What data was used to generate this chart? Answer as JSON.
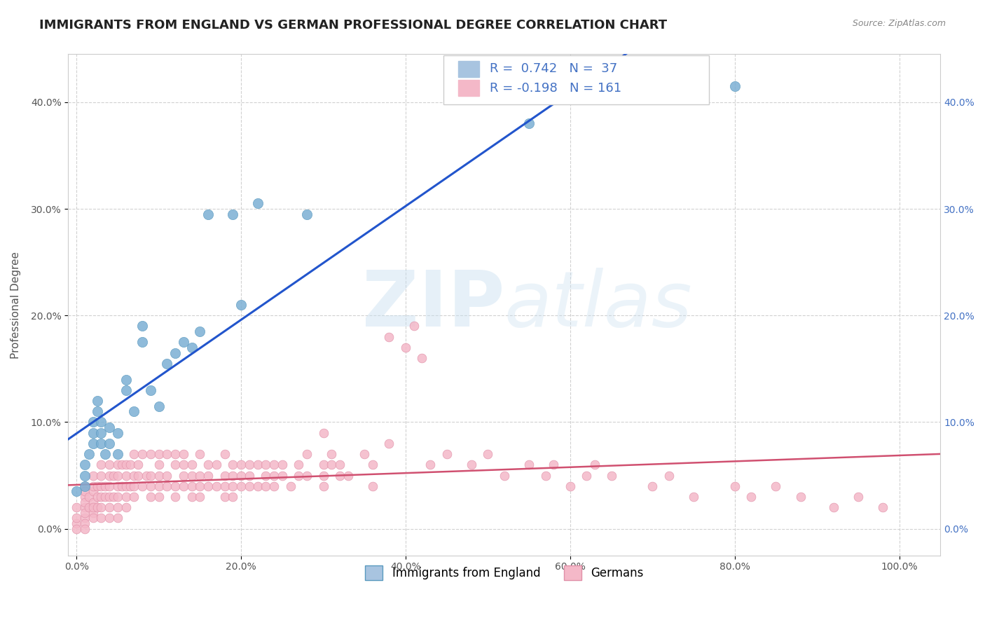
{
  "title": "IMMIGRANTS FROM ENGLAND VS GERMAN PROFESSIONAL DEGREE CORRELATION CHART",
  "source_text": "Source: ZipAtlas.com",
  "ylabel": "Professional Degree",
  "x_tick_labels": [
    "0.0%",
    "20.0%",
    "40.0%",
    "60.0%",
    "80.0%",
    "100.0%"
  ],
  "x_tick_vals": [
    0.0,
    0.2,
    0.4,
    0.6,
    0.8,
    1.0
  ],
  "y_tick_labels": [
    "0.0%",
    "10.0%",
    "20.0%",
    "30.0%",
    "40.0%"
  ],
  "y_tick_vals": [
    0.0,
    0.1,
    0.2,
    0.3,
    0.4
  ],
  "xlim": [
    -0.01,
    1.05
  ],
  "ylim": [
    -0.025,
    0.445
  ],
  "series_england": {
    "face_color": "#7bafd4",
    "edge_color": "#5a9abf",
    "line_color": "#2255cc",
    "x": [
      0.0,
      0.01,
      0.01,
      0.01,
      0.015,
      0.02,
      0.02,
      0.02,
      0.025,
      0.025,
      0.03,
      0.03,
      0.03,
      0.035,
      0.04,
      0.04,
      0.05,
      0.05,
      0.06,
      0.06,
      0.07,
      0.08,
      0.08,
      0.09,
      0.1,
      0.11,
      0.12,
      0.13,
      0.14,
      0.15,
      0.16,
      0.19,
      0.2,
      0.22,
      0.28,
      0.55,
      0.8
    ],
    "y": [
      0.035,
      0.04,
      0.05,
      0.06,
      0.07,
      0.08,
      0.09,
      0.1,
      0.11,
      0.12,
      0.08,
      0.09,
      0.1,
      0.07,
      0.08,
      0.095,
      0.07,
      0.09,
      0.13,
      0.14,
      0.11,
      0.175,
      0.19,
      0.13,
      0.115,
      0.155,
      0.165,
      0.175,
      0.17,
      0.185,
      0.295,
      0.295,
      0.21,
      0.305,
      0.295,
      0.38,
      0.415
    ]
  },
  "series_german": {
    "face_color": "#f4b8c8",
    "edge_color": "#e090a8",
    "line_color": "#d05070",
    "x": [
      0.0,
      0.0,
      0.0,
      0.0,
      0.01,
      0.01,
      0.01,
      0.01,
      0.01,
      0.01,
      0.01,
      0.01,
      0.01,
      0.015,
      0.015,
      0.02,
      0.02,
      0.02,
      0.02,
      0.02,
      0.02,
      0.02,
      0.025,
      0.025,
      0.025,
      0.03,
      0.03,
      0.03,
      0.03,
      0.03,
      0.03,
      0.035,
      0.035,
      0.04,
      0.04,
      0.04,
      0.04,
      0.04,
      0.04,
      0.045,
      0.045,
      0.05,
      0.05,
      0.05,
      0.05,
      0.05,
      0.05,
      0.055,
      0.055,
      0.06,
      0.06,
      0.06,
      0.06,
      0.06,
      0.065,
      0.065,
      0.07,
      0.07,
      0.07,
      0.07,
      0.075,
      0.075,
      0.08,
      0.08,
      0.085,
      0.09,
      0.09,
      0.09,
      0.09,
      0.1,
      0.1,
      0.1,
      0.1,
      0.1,
      0.11,
      0.11,
      0.11,
      0.12,
      0.12,
      0.12,
      0.12,
      0.13,
      0.13,
      0.13,
      0.13,
      0.14,
      0.14,
      0.14,
      0.14,
      0.15,
      0.15,
      0.15,
      0.15,
      0.16,
      0.16,
      0.16,
      0.17,
      0.17,
      0.18,
      0.18,
      0.18,
      0.18,
      0.19,
      0.19,
      0.19,
      0.19,
      0.2,
      0.2,
      0.2,
      0.21,
      0.21,
      0.21,
      0.22,
      0.22,
      0.23,
      0.23,
      0.23,
      0.24,
      0.24,
      0.24,
      0.25,
      0.25,
      0.26,
      0.27,
      0.27,
      0.28,
      0.28,
      0.3,
      0.3,
      0.3,
      0.3,
      0.31,
      0.31,
      0.32,
      0.32,
      0.33,
      0.35,
      0.36,
      0.36,
      0.38,
      0.38,
      0.4,
      0.41,
      0.42,
      0.43,
      0.45,
      0.48,
      0.5,
      0.52,
      0.55,
      0.57,
      0.58,
      0.6,
      0.62,
      0.63,
      0.65,
      0.7,
      0.72,
      0.75,
      0.8,
      0.82,
      0.85,
      0.88,
      0.92,
      0.95,
      0.98
    ],
    "y": [
      0.005,
      0.0,
      0.01,
      0.02,
      0.01,
      0.02,
      0.03,
      0.04,
      0.005,
      0.0,
      0.015,
      0.025,
      0.035,
      0.02,
      0.03,
      0.015,
      0.025,
      0.035,
      0.01,
      0.02,
      0.04,
      0.05,
      0.02,
      0.03,
      0.04,
      0.01,
      0.02,
      0.03,
      0.04,
      0.05,
      0.06,
      0.03,
      0.04,
      0.02,
      0.03,
      0.04,
      0.05,
      0.01,
      0.06,
      0.03,
      0.05,
      0.02,
      0.03,
      0.04,
      0.05,
      0.06,
      0.01,
      0.04,
      0.06,
      0.03,
      0.04,
      0.05,
      0.06,
      0.02,
      0.04,
      0.06,
      0.03,
      0.04,
      0.05,
      0.07,
      0.05,
      0.06,
      0.04,
      0.07,
      0.05,
      0.03,
      0.04,
      0.05,
      0.07,
      0.04,
      0.05,
      0.06,
      0.07,
      0.03,
      0.04,
      0.05,
      0.07,
      0.03,
      0.04,
      0.06,
      0.07,
      0.04,
      0.05,
      0.06,
      0.07,
      0.03,
      0.04,
      0.05,
      0.06,
      0.03,
      0.04,
      0.05,
      0.07,
      0.04,
      0.05,
      0.06,
      0.04,
      0.06,
      0.03,
      0.04,
      0.05,
      0.07,
      0.04,
      0.05,
      0.06,
      0.03,
      0.04,
      0.05,
      0.06,
      0.04,
      0.05,
      0.06,
      0.04,
      0.06,
      0.05,
      0.06,
      0.04,
      0.05,
      0.06,
      0.04,
      0.06,
      0.05,
      0.04,
      0.05,
      0.06,
      0.05,
      0.07,
      0.09,
      0.05,
      0.06,
      0.04,
      0.06,
      0.07,
      0.05,
      0.06,
      0.05,
      0.07,
      0.06,
      0.04,
      0.18,
      0.08,
      0.17,
      0.19,
      0.16,
      0.06,
      0.07,
      0.06,
      0.07,
      0.05,
      0.06,
      0.05,
      0.06,
      0.04,
      0.05,
      0.06,
      0.05,
      0.04,
      0.05,
      0.03,
      0.04,
      0.03,
      0.04,
      0.03,
      0.02,
      0.03,
      0.02
    ]
  },
  "watermark_zip": "ZIP",
  "watermark_atlas": "atlas",
  "background_color": "#ffffff",
  "grid_color": "#cccccc",
  "title_fontsize": 13,
  "axis_fontsize": 11,
  "tick_fontsize": 10
}
